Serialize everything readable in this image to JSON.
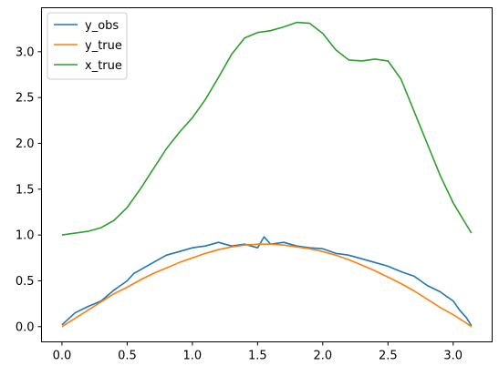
{
  "chart_data": {
    "type": "line",
    "title": "",
    "xlabel": "",
    "ylabel": "",
    "xlim": [
      -0.157,
      3.299
    ],
    "ylim": [
      -0.166,
      3.48
    ],
    "xticks": [
      0.0,
      0.5,
      1.0,
      1.5,
      2.0,
      2.5,
      3.0
    ],
    "xtick_labels": [
      "0.0",
      "0.5",
      "1.0",
      "1.5",
      "2.0",
      "2.5",
      "3.0"
    ],
    "yticks": [
      0.0,
      0.5,
      1.0,
      1.5,
      2.0,
      2.5,
      3.0
    ],
    "ytick_labels": [
      "0.0",
      "0.5",
      "1.0",
      "1.5",
      "2.0",
      "2.5",
      "3.0"
    ],
    "grid": false,
    "legend_position": "upper-left",
    "series": [
      {
        "name": "y_obs",
        "color": "#1f77b4",
        "x": [
          0.0,
          0.1,
          0.2,
          0.3,
          0.4,
          0.5,
          0.55,
          0.6,
          0.7,
          0.8,
          0.9,
          1.0,
          1.1,
          1.2,
          1.3,
          1.4,
          1.5,
          1.55,
          1.6,
          1.7,
          1.8,
          1.9,
          2.0,
          2.1,
          2.2,
          2.3,
          2.4,
          2.5,
          2.6,
          2.7,
          2.8,
          2.9,
          3.0,
          3.05,
          3.1,
          3.14
        ],
        "y": [
          0.02,
          0.15,
          0.22,
          0.28,
          0.4,
          0.5,
          0.58,
          0.62,
          0.7,
          0.78,
          0.82,
          0.86,
          0.88,
          0.92,
          0.88,
          0.9,
          0.86,
          0.98,
          0.9,
          0.92,
          0.88,
          0.86,
          0.85,
          0.8,
          0.78,
          0.74,
          0.7,
          0.66,
          0.6,
          0.55,
          0.45,
          0.38,
          0.28,
          0.18,
          0.1,
          0.01
        ]
      },
      {
        "name": "y_true",
        "color": "#ff7f0e",
        "x": [
          0.0,
          0.1,
          0.2,
          0.3,
          0.4,
          0.5,
          0.6,
          0.7,
          0.8,
          0.9,
          1.0,
          1.1,
          1.2,
          1.3,
          1.4,
          1.5,
          1.6,
          1.7,
          1.8,
          1.9,
          2.0,
          2.1,
          2.2,
          2.3,
          2.4,
          2.5,
          2.6,
          2.7,
          2.8,
          2.9,
          3.0,
          3.1,
          3.14
        ],
        "y": [
          0.0,
          0.09,
          0.18,
          0.27,
          0.36,
          0.43,
          0.51,
          0.58,
          0.64,
          0.7,
          0.75,
          0.8,
          0.84,
          0.87,
          0.89,
          0.9,
          0.9,
          0.89,
          0.87,
          0.85,
          0.82,
          0.78,
          0.73,
          0.67,
          0.61,
          0.54,
          0.47,
          0.39,
          0.3,
          0.21,
          0.13,
          0.04,
          0.0
        ]
      },
      {
        "name": "x_true",
        "color": "#2ca02c",
        "x": [
          0.0,
          0.2,
          0.3,
          0.4,
          0.5,
          0.6,
          0.7,
          0.8,
          0.9,
          1.0,
          1.1,
          1.2,
          1.3,
          1.4,
          1.5,
          1.6,
          1.7,
          1.8,
          1.9,
          2.0,
          2.1,
          2.2,
          2.3,
          2.4,
          2.5,
          2.6,
          2.7,
          2.8,
          2.9,
          3.0,
          3.14
        ],
        "y": [
          1.0,
          1.04,
          1.08,
          1.16,
          1.3,
          1.5,
          1.72,
          1.94,
          2.12,
          2.28,
          2.48,
          2.72,
          2.97,
          3.15,
          3.21,
          3.23,
          3.27,
          3.32,
          3.31,
          3.2,
          3.02,
          2.91,
          2.9,
          2.92,
          2.9,
          2.7,
          2.35,
          2.0,
          1.65,
          1.35,
          1.02
        ]
      }
    ]
  }
}
